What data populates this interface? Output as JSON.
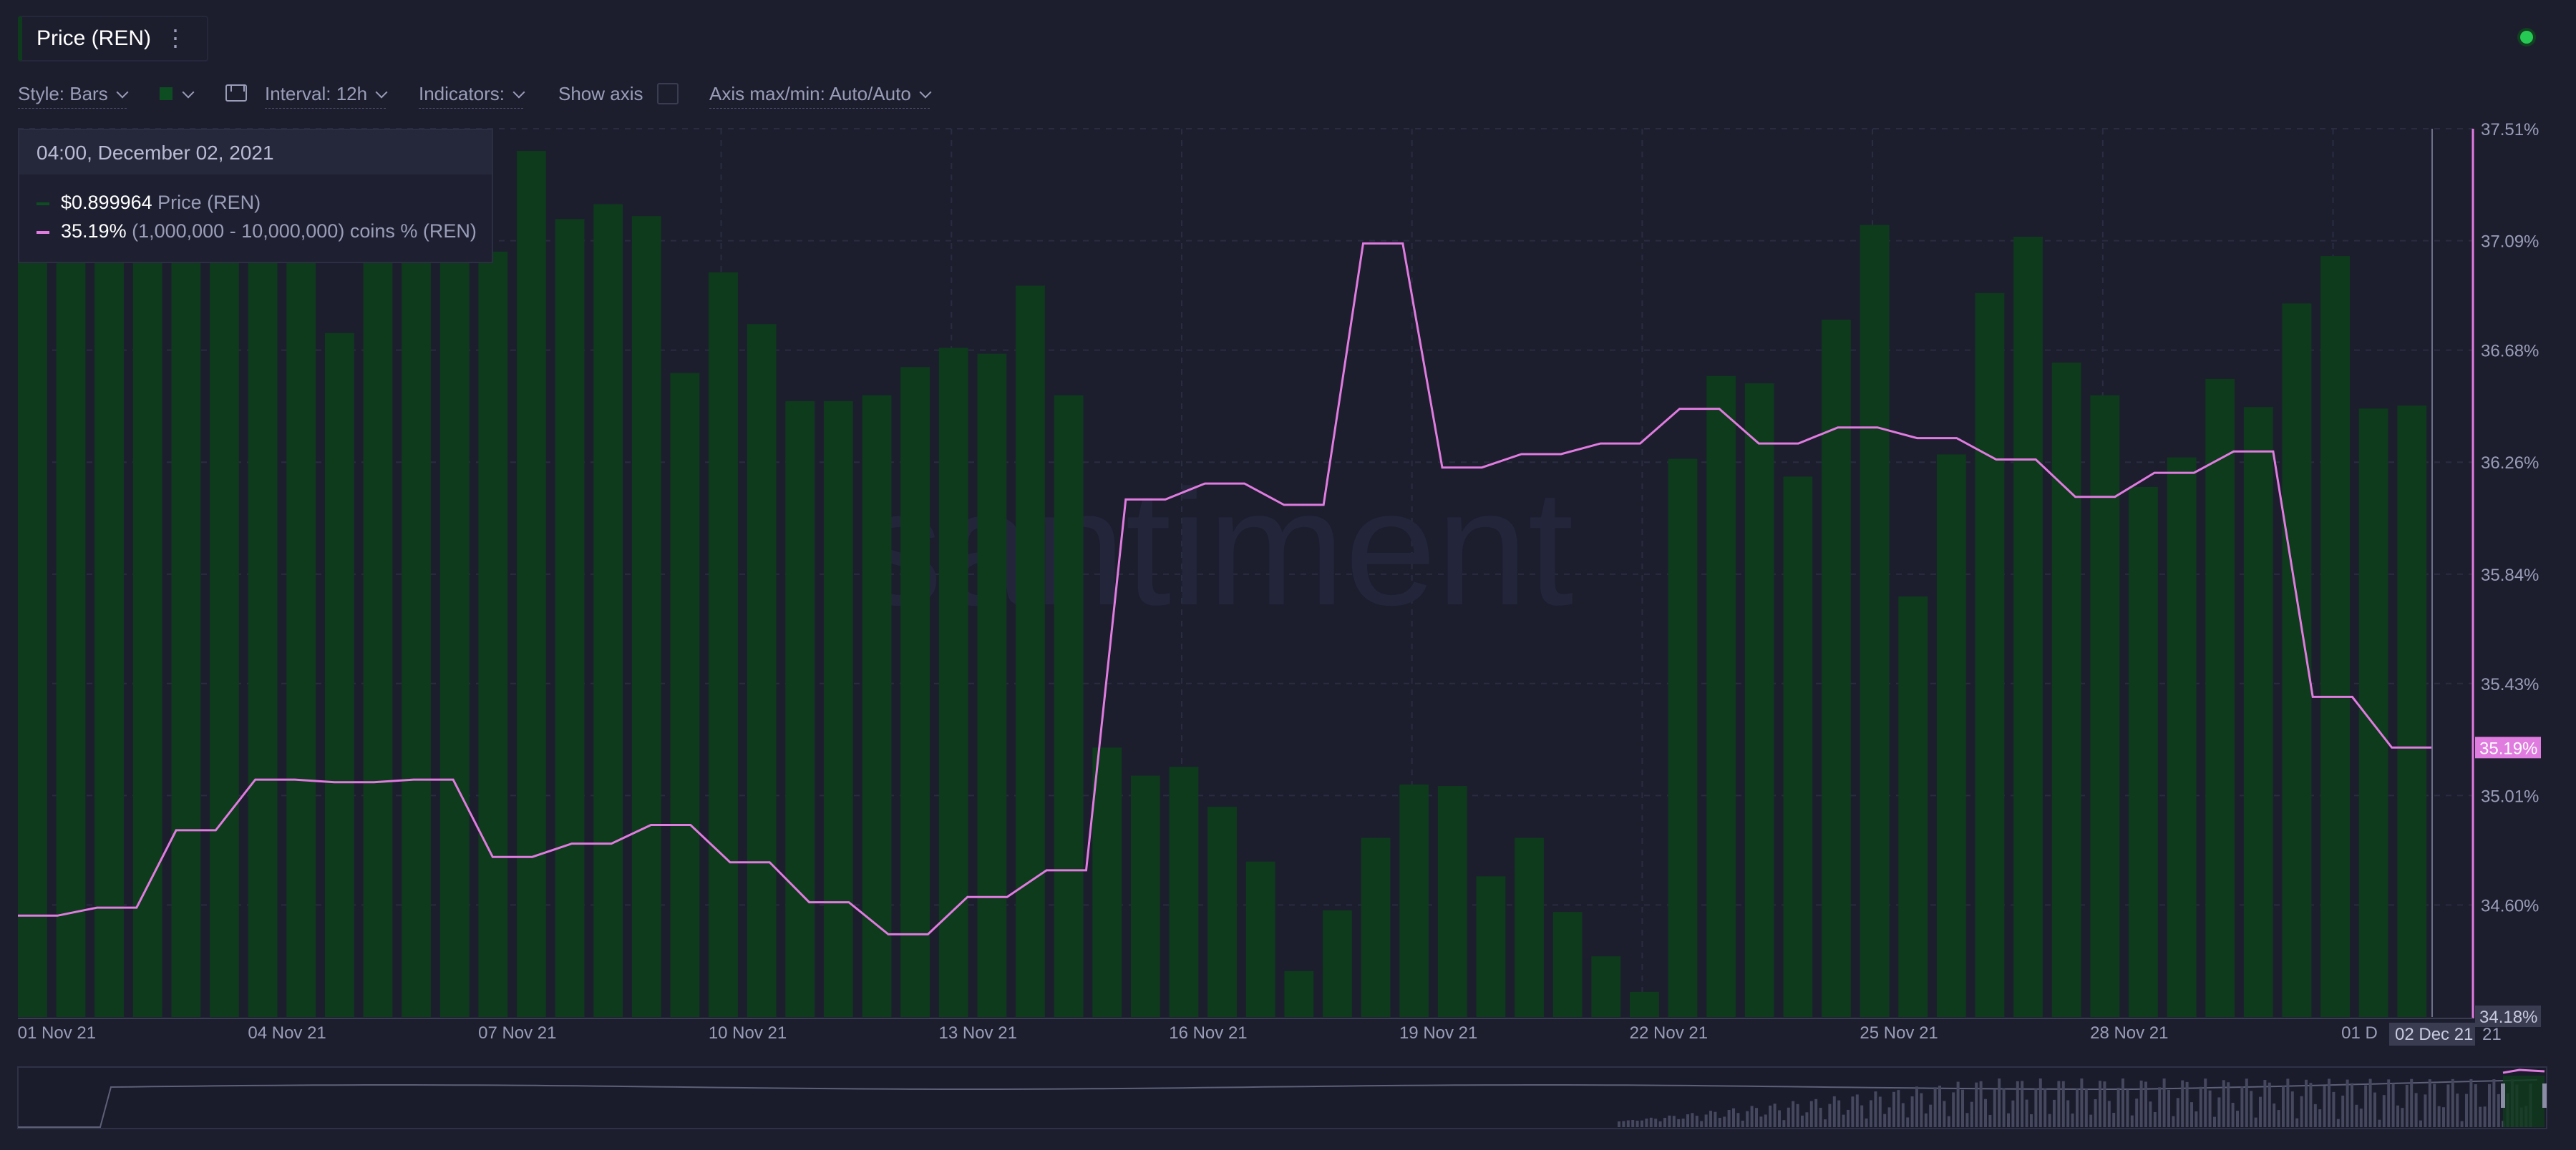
{
  "header": {
    "title": "Price (REN)"
  },
  "toolbar": {
    "style_label": "Style: Bars",
    "interval_label": "Interval: 12h",
    "indicators_label": "Indicators:",
    "show_axis_label": "Show axis",
    "axis_minmax_label": "Axis max/min: Auto/Auto"
  },
  "tooltip": {
    "date": "04:00, December 02, 2021",
    "price_value": "$0.899964",
    "price_label": "Price (REN)",
    "holders_value": "35.19%",
    "holders_label": "(1,000,000 - 10,000,000) coins % (REN)"
  },
  "watermark": "santiment",
  "colors": {
    "bar": "#0e3b1c",
    "line": "#e07be0",
    "background": "#1c1e2e"
  },
  "chart_data": {
    "type": "bar+line",
    "series": [
      {
        "name": "Price (REN)",
        "type": "bar",
        "values": [
          1.0,
          1.0,
          1.0,
          1.0,
          1.0,
          0.948,
          0.954,
          0.924,
          0.862,
          0.917,
          0.917,
          0.919,
          0.917,
          0.985,
          0.939,
          0.949,
          0.941,
          0.835,
          0.903,
          0.868,
          0.816,
          0.816,
          0.82,
          0.839,
          0.852,
          0.848,
          0.894,
          0.82,
          0.582,
          0.563,
          0.569,
          0.542,
          0.505,
          0.431,
          0.472,
          0.521,
          0.557,
          0.556,
          0.495,
          0.521,
          0.471,
          0.441,
          0.417,
          0.777,
          0.833,
          0.828,
          0.765,
          0.871,
          0.935,
          0.684,
          0.78,
          0.889,
          0.927,
          0.842,
          0.82,
          0.758,
          0.778,
          0.831,
          0.812,
          0.882,
          0.914,
          0.811,
          0.813
        ]
      },
      {
        "name": "(1,000,000 - 10,000,000) coins % (REN)",
        "type": "line",
        "values": [
          34.56,
          34.56,
          34.59,
          34.59,
          34.88,
          34.88,
          35.07,
          35.07,
          35.06,
          35.06,
          35.07,
          35.07,
          34.78,
          34.78,
          34.83,
          34.83,
          34.9,
          34.9,
          34.76,
          34.76,
          34.61,
          34.61,
          34.49,
          34.49,
          34.63,
          34.63,
          34.73,
          34.73,
          36.12,
          36.12,
          36.18,
          36.18,
          36.1,
          36.1,
          37.08,
          37.08,
          36.24,
          36.24,
          36.29,
          36.29,
          36.33,
          36.33,
          36.46,
          36.46,
          36.33,
          36.33,
          36.39,
          36.39,
          36.35,
          36.35,
          36.27,
          36.27,
          36.13,
          36.13,
          36.22,
          36.22,
          36.3,
          36.3,
          35.38,
          35.38,
          35.19,
          35.19
        ]
      }
    ],
    "x_tick_labels": [
      "01 Nov 21",
      "04 Nov 21",
      "07 Nov 21",
      "10 Nov 21",
      "13 Nov 21",
      "16 Nov 21",
      "19 Nov 21",
      "22 Nov 21",
      "25 Nov 21",
      "28 Nov 21",
      "01 D"
    ],
    "y_right_ticks": [
      "37.51%",
      "37.09%",
      "36.68%",
      "36.26%",
      "35.84%",
      "35.43%",
      "35.01%",
      "34.60%"
    ],
    "y_right_range": [
      34.18,
      37.51
    ],
    "current_value_label": "35.19%",
    "min_label": "34.18%",
    "crosshair_date_label": "02 Dec 21",
    "crosshair_date_suffix": "21",
    "grid": true
  }
}
